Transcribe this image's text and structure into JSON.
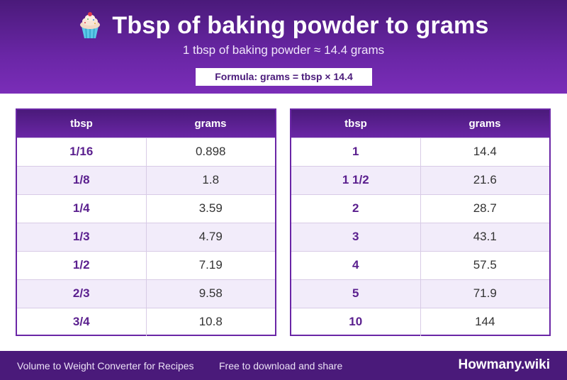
{
  "header": {
    "title": "Tbsp of baking powder to grams",
    "subtitle": "1 tbsp of baking powder ≈ 14.4 grams",
    "formula": "Formula: grams = tbsp × 14.4",
    "icon": "cupcake-icon"
  },
  "tables": {
    "left": {
      "col_tbsp": "tbsp",
      "col_grams": "grams",
      "rows": [
        {
          "tbsp": "1/16",
          "grams": "0.898"
        },
        {
          "tbsp": "1/8",
          "grams": "1.8"
        },
        {
          "tbsp": "1/4",
          "grams": "3.59"
        },
        {
          "tbsp": "1/3",
          "grams": "4.79"
        },
        {
          "tbsp": "1/2",
          "grams": "7.19"
        },
        {
          "tbsp": "2/3",
          "grams": "9.58"
        },
        {
          "tbsp": "3/4",
          "grams": "10.8"
        }
      ]
    },
    "right": {
      "col_tbsp": "tbsp",
      "col_grams": "grams",
      "rows": [
        {
          "tbsp": "1",
          "grams": "14.4"
        },
        {
          "tbsp": "1 1/2",
          "grams": "21.6"
        },
        {
          "tbsp": "2",
          "grams": "28.7"
        },
        {
          "tbsp": "3",
          "grams": "43.1"
        },
        {
          "tbsp": "4",
          "grams": "57.5"
        },
        {
          "tbsp": "5",
          "grams": "71.9"
        },
        {
          "tbsp": "10",
          "grams": "144"
        }
      ]
    }
  },
  "footer": {
    "description": "Volume to Weight Converter for Recipes",
    "note": "Free to download and share",
    "brand": "Howmany.wiki"
  },
  "colors": {
    "primary": "#6a26a6",
    "primary_dark": "#4a1a7a",
    "row_alt": "#f2ecfa"
  }
}
